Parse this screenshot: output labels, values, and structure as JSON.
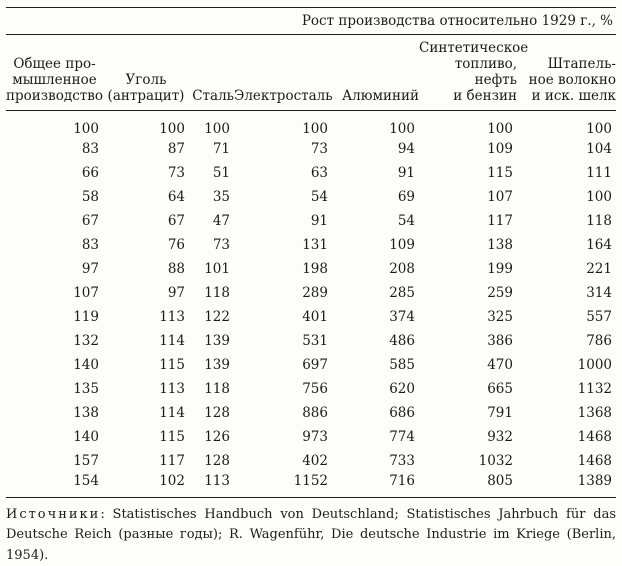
{
  "table": {
    "title": "Рост производства относительно 1929 г., %",
    "columns": [
      {
        "label": "Общее про-\nмышленное\nпроизводство",
        "align": "center"
      },
      {
        "label": "Уголь\n(антрацит)",
        "align": "center"
      },
      {
        "label": "Сталь",
        "align": "right"
      },
      {
        "label": "Электросталь",
        "align": "right"
      },
      {
        "label": "Алюминий",
        "align": "right"
      },
      {
        "label": "Синтетическое\nтопливо, нефть\nи бензин",
        "align": "right"
      },
      {
        "label": "Штапель-\nное волокно\nи иск. шелк",
        "align": "right"
      }
    ],
    "rows": [
      [
        100,
        100,
        100,
        100,
        100,
        100,
        100
      ],
      [
        83,
        87,
        71,
        73,
        94,
        109,
        104
      ],
      [
        66,
        73,
        51,
        63,
        91,
        115,
        111
      ],
      [
        58,
        64,
        35,
        54,
        69,
        107,
        100
      ],
      [
        67,
        67,
        47,
        91,
        54,
        117,
        118
      ],
      [
        83,
        76,
        73,
        131,
        109,
        138,
        164
      ],
      [
        97,
        88,
        101,
        198,
        208,
        199,
        221
      ],
      [
        107,
        97,
        118,
        289,
        285,
        259,
        314
      ],
      [
        119,
        113,
        122,
        401,
        374,
        325,
        557
      ],
      [
        132,
        114,
        139,
        531,
        486,
        386,
        786
      ],
      [
        140,
        115,
        139,
        697,
        585,
        470,
        1000
      ],
      [
        135,
        113,
        118,
        756,
        620,
        665,
        1132
      ],
      [
        138,
        114,
        128,
        886,
        686,
        791,
        1368
      ],
      [
        140,
        115,
        126,
        973,
        774,
        932,
        1468
      ],
      [
        157,
        117,
        128,
        402,
        733,
        1032,
        1468
      ],
      [
        154,
        102,
        113,
        1152,
        716,
        805,
        1389
      ]
    ]
  },
  "footer": {
    "label": "Источники",
    "text": ": Statistisches Handbuch von Deutschland; Statistisches Jahrbuch für das Deutsche Reich (разные годы); R. Wagenführ, Die deutsche Industrie im Kriege (Berlin, 1954)."
  }
}
